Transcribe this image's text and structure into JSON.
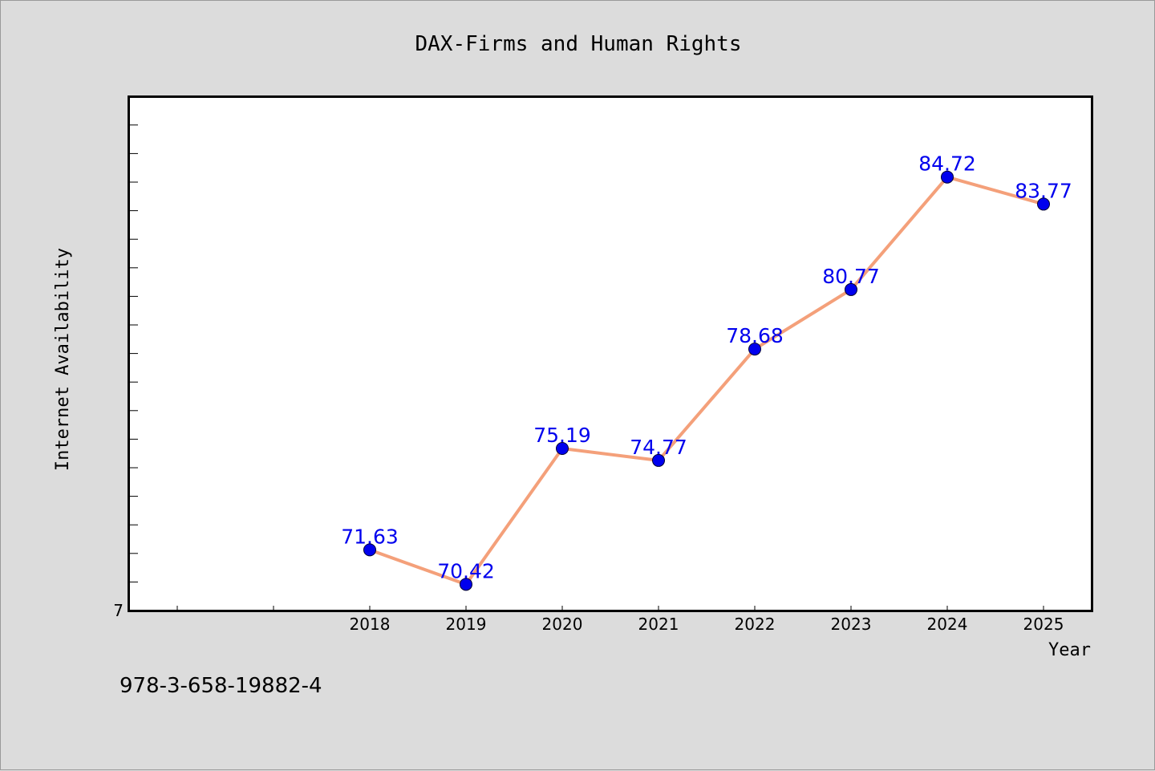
{
  "chart_data": {
    "type": "line",
    "title": "DAX-Firms and Human Rights",
    "xlabel": "Year",
    "ylabel": "Internet Availability",
    "x_ticks": [
      "",
      "",
      "2018",
      "2019",
      "2020",
      "2021",
      "2022",
      "2023",
      "2024",
      "2025"
    ],
    "y_tick_labels": [
      "7"
    ],
    "ylim": [
      69.5,
      87.5
    ],
    "grid": false,
    "series": [
      {
        "x": [
          "2018",
          "2019",
          "2020",
          "2021",
          "2022",
          "2023",
          "2024",
          "2025"
        ],
        "values": [
          71.63,
          70.42,
          75.19,
          74.77,
          78.68,
          80.77,
          84.72,
          83.77
        ],
        "data_labels": [
          "71.63",
          "70.42",
          "75.19",
          "74.77",
          "78.68",
          "80.77",
          "84.72",
          "83.77"
        ]
      }
    ],
    "colors": {
      "line": "#f4a07a",
      "marker": "#0000ee",
      "data_label": "#0000ee"
    }
  },
  "footnote": "978-3-658-19882-4"
}
